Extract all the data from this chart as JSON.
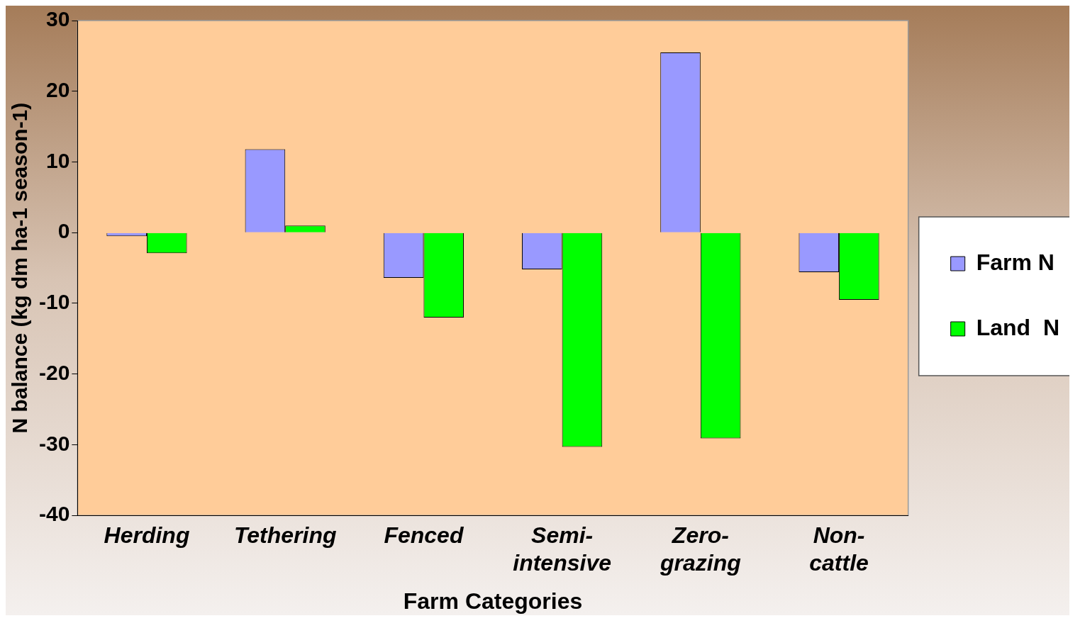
{
  "chart_data": {
    "type": "bar",
    "xlabel": "Farm Categories",
    "ylabel": "N balance (kg dm ha-1 season-1)",
    "categories": [
      "Herding",
      "Tethering",
      "Fenced",
      "Semi-intensive",
      "Zero-grazing",
      "Non-cattle"
    ],
    "series": [
      {
        "name": "Farm N",
        "color": "#9999ff",
        "values": [
          -0.5,
          11.8,
          -6.4,
          -5.2,
          25.5,
          -5.6
        ]
      },
      {
        "name": "Land  N",
        "color": "#00ff00",
        "values": [
          -2.9,
          1.0,
          -12.0,
          -30.3,
          -29.1,
          -9.5
        ]
      }
    ],
    "ylim": [
      -40,
      30
    ],
    "yticks": [
      -40,
      -30,
      -20,
      -10,
      0,
      10,
      20,
      30
    ],
    "grid": false,
    "legend": "right"
  }
}
